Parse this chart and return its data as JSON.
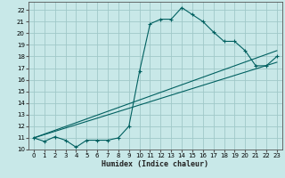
{
  "title": "",
  "xlabel": "Humidex (Indice chaleur)",
  "bg_color": "#c8e8e8",
  "grid_color": "#a0c8c8",
  "line_color": "#006060",
  "spine_color": "#555555",
  "xlim": [
    -0.5,
    23.5
  ],
  "ylim": [
    10.0,
    22.7
  ],
  "yticks": [
    10,
    11,
    12,
    13,
    14,
    15,
    16,
    17,
    18,
    19,
    20,
    21,
    22
  ],
  "xticks": [
    0,
    1,
    2,
    3,
    4,
    5,
    6,
    7,
    8,
    9,
    10,
    11,
    12,
    13,
    14,
    15,
    16,
    17,
    18,
    19,
    20,
    21,
    22,
    23
  ],
  "line1_x": [
    0,
    1,
    2,
    3,
    4,
    5,
    6,
    7,
    8,
    9,
    10,
    11,
    12,
    13,
    14,
    15,
    16,
    17,
    18,
    19,
    20,
    21,
    22,
    23
  ],
  "line1_y": [
    11.0,
    10.7,
    11.1,
    10.8,
    10.2,
    10.8,
    10.8,
    10.8,
    11.0,
    12.0,
    16.7,
    20.8,
    21.2,
    21.2,
    22.2,
    21.6,
    21.0,
    20.1,
    19.3,
    19.3,
    18.5,
    17.2,
    17.2,
    18.0
  ],
  "line2_x": [
    0,
    23
  ],
  "line2_y": [
    11.0,
    18.5
  ],
  "line3_x": [
    0,
    23
  ],
  "line3_y": [
    11.0,
    17.5
  ],
  "tick_fontsize": 5.0,
  "xlabel_fontsize": 6.0
}
